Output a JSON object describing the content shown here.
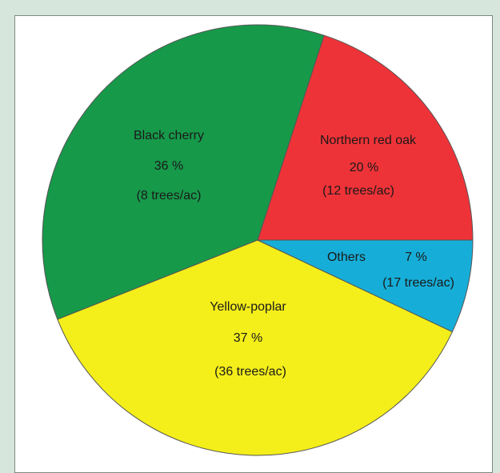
{
  "colors": {
    "background": "#d6e6dc",
    "panel": "#ffffff",
    "outline": "#555555"
  },
  "chart_data": {
    "type": "pie",
    "title": "",
    "start_angle_deg": 0,
    "direction": "counterclockwise-from-3-oclock",
    "slices": [
      {
        "label": "Northern red oak",
        "percent": 20,
        "percent_text": "20 %",
        "count_text": "(12 trees/ac)",
        "value": 20,
        "color": "#ee3338"
      },
      {
        "label": "Black cherry",
        "percent": 36,
        "percent_text": "36 %",
        "count_text": "(8 trees/ac)",
        "value": 36,
        "color": "#17994a"
      },
      {
        "label": "Yellow-poplar",
        "percent": 37,
        "percent_text": "37 %",
        "count_text": "(36 trees/ac)",
        "value": 37,
        "color": "#f4ee1a"
      },
      {
        "label": "Others",
        "percent": 7,
        "percent_text": "7 %",
        "count_text": "(17 trees/ac)",
        "value": 7,
        "color": "#16aed8"
      }
    ]
  }
}
